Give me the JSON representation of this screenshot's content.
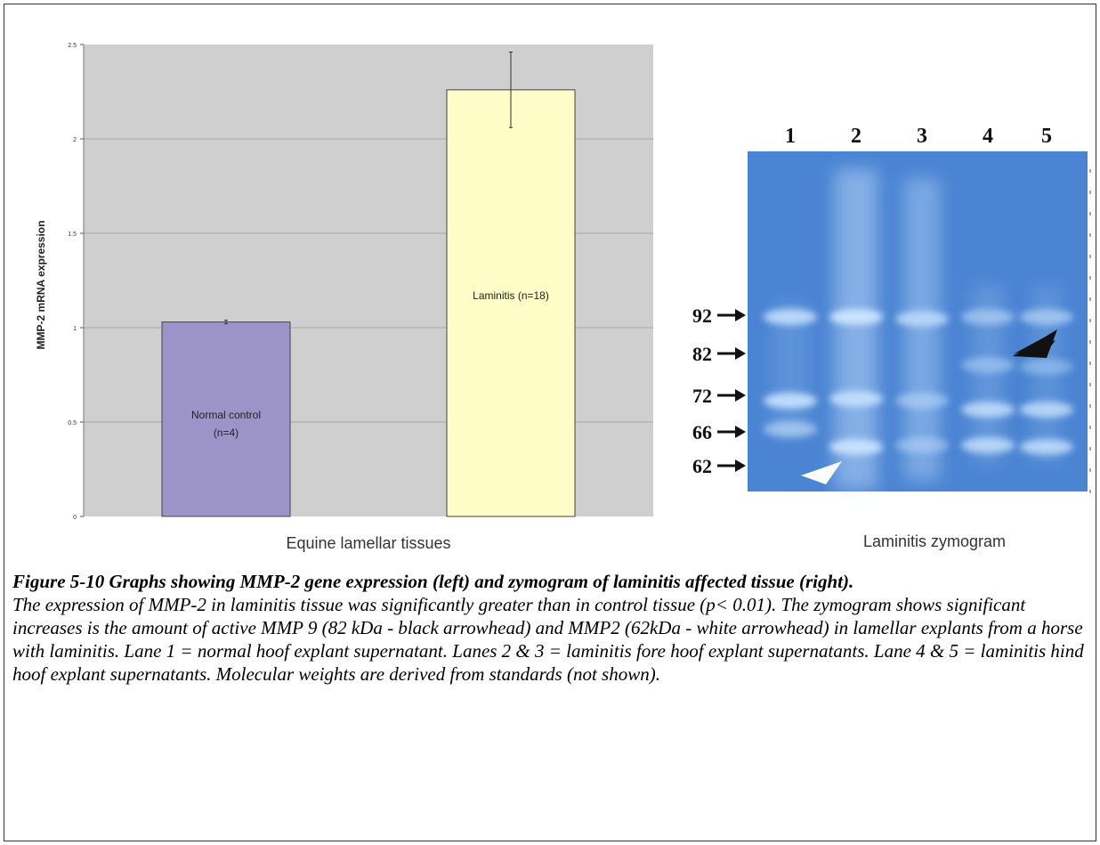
{
  "chart_data": {
    "type": "bar",
    "ylabel": "MMP-2 mRNA expression",
    "xlabel": "Equine lamellar tissues",
    "ylim": [
      0,
      2.5
    ],
    "yticks": [
      "0",
      "0.5",
      "1",
      "1.5",
      "2",
      "2.5"
    ],
    "categories": [
      "Normal control (n=4)",
      "Laminitis (n=18)"
    ],
    "bars": [
      {
        "label_line1": "Normal control",
        "label_line2": "(n=4)",
        "value": 1.03,
        "error": 0.0,
        "color": "#9c94c9"
      },
      {
        "label_line1": "Laminitis (n=18)",
        "label_line2": "",
        "value": 2.26,
        "error": 0.2,
        "color": "#fefdc8"
      }
    ],
    "grid": true,
    "plot_background": "#cfcfcf"
  },
  "zymogram": {
    "lanes": [
      "1",
      "2",
      "3",
      "4",
      "5"
    ],
    "markers": [
      "92",
      "82",
      "72",
      "66",
      "62"
    ],
    "caption": "Laminitis zymogram",
    "gel_color": "#4a84d2",
    "band_color": "#c9e3ff"
  },
  "figure_caption": {
    "title": "Figure 5-10  Graphs showing MMP-2 gene expression (left) and zymogram of laminitis affected tissue (right).",
    "body": "The expression of MMP-2 in laminitis tissue was significantly greater than in control tissue (p< 0.01). The zymogram shows significant increases is the amount of active MMP 9 (82 kDa - black arrowhead) and MMP2 (62kDa - white arrowhead) in lamellar explants from a horse with laminitis. Lane 1 = normal hoof explant supernatant. Lanes 2 & 3 = laminitis fore hoof explant supernatants. Lane 4 & 5 = laminitis hind hoof explant supernatants. Molecular weights are derived from standards (not shown)."
  }
}
